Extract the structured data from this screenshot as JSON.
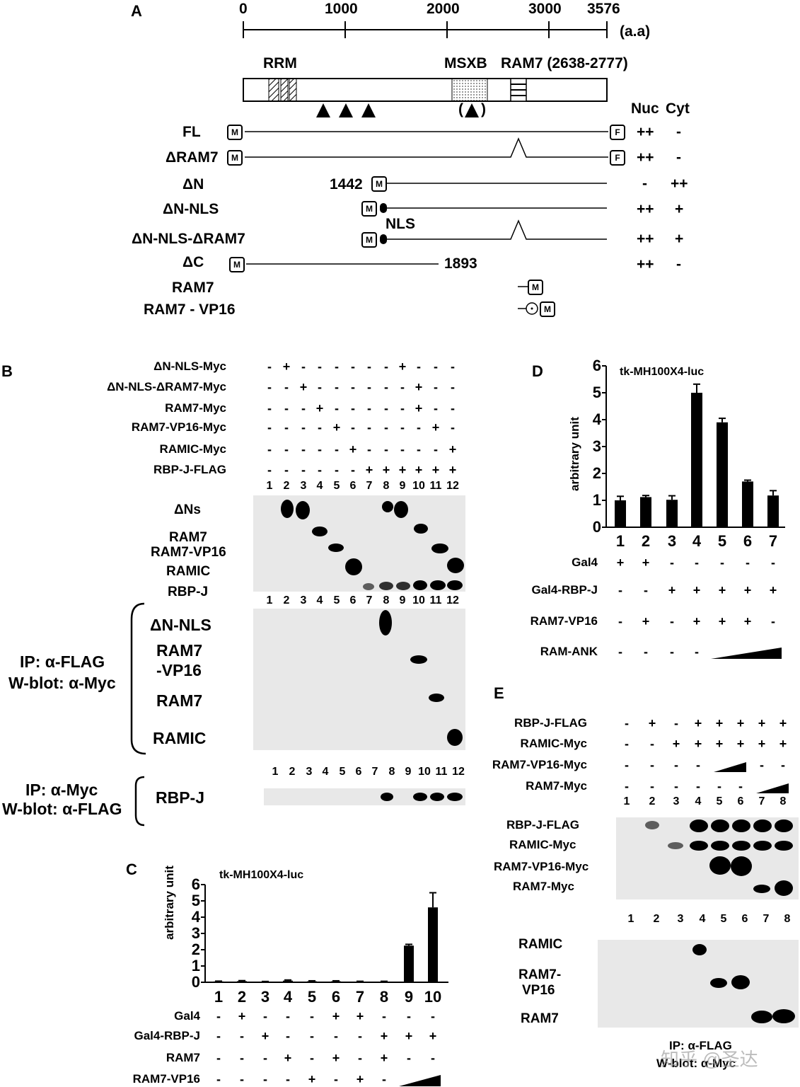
{
  "panelA": {
    "letter": "A",
    "scale_ticks": [
      "0",
      "1000",
      "2000",
      "3000",
      "3576"
    ],
    "scale_unit": "(a.a)",
    "domain_labels": {
      "rrm": "RRM",
      "msxb": "MSXB",
      "ram7": "RAM7 (2638-2777)"
    },
    "arrow_paren": "(",
    "arrow_paren_close": ")",
    "column_headers": {
      "nuc": "Nuc",
      "cyt": "Cyt"
    },
    "myc_tag": "M",
    "flag_tag": "F",
    "nls_label": "NLS",
    "dn_start": "1442",
    "dc_end": "1893",
    "constructs": [
      {
        "name": "FL",
        "nuc": "++",
        "cyt": "-"
      },
      {
        "name": "ΔRAM7",
        "nuc": "++",
        "cyt": "-"
      },
      {
        "name": "ΔN",
        "nuc": "-",
        "cyt": "++"
      },
      {
        "name": "ΔN-NLS",
        "nuc": "++",
        "cyt": "+"
      },
      {
        "name": "ΔN-NLS-ΔRAM7",
        "nuc": "++",
        "cyt": "+"
      },
      {
        "name": "ΔC",
        "nuc": "++",
        "cyt": "-"
      },
      {
        "name": "RAM7",
        "nuc": "",
        "cyt": ""
      },
      {
        "name": "RAM7 - VP16",
        "nuc": "",
        "cyt": ""
      }
    ]
  },
  "panelB": {
    "letter": "B",
    "rows": [
      {
        "label": "ΔN-NLS-Myc",
        "signs": "-+------+---"
      },
      {
        "label": "ΔN-NLS-ΔRAM7-Myc",
        "signs": "--+------+--"
      },
      {
        "label": "RAM7-Myc",
        "signs": "---+-----+--"
      },
      {
        "label": "RAM7-VP16-Myc",
        "signs": "----+-----+-"
      },
      {
        "label": "RAMIC-Myc",
        "signs": "-----+-----+"
      },
      {
        "label": "RBP-J-FLAG",
        "signs": "------++++++"
      }
    ],
    "lanes": [
      "1",
      "2",
      "3",
      "4",
      "5",
      "6",
      "7",
      "8",
      "9",
      "10",
      "11",
      "12"
    ],
    "blot1_labels": [
      "ΔNs",
      "RAM7",
      "RAM7-VP16",
      "RAMIC",
      "RBP-J"
    ],
    "blot2_labels": [
      "ΔN-NLS",
      "RAM7",
      "-VP16",
      "RAM7",
      "RAMIC"
    ],
    "blot2_ip": [
      "IP: α-FLAG",
      "W-blot: α-Myc"
    ],
    "blot3_label": "RBP-J",
    "blot3_ip": [
      "IP: α-Myc",
      "W-blot: α-FLAG"
    ]
  },
  "chart_data": [
    {
      "panel": "C",
      "type": "bar",
      "title": "tk-MH100X4-luc",
      "ylabel": "arbitrary unit",
      "ylim": [
        0,
        6
      ],
      "yticks": [
        "0",
        "1",
        "2",
        "3",
        "4",
        "5",
        "6"
      ],
      "categories": [
        "1",
        "2",
        "3",
        "4",
        "5",
        "6",
        "7",
        "8",
        "9",
        "10"
      ],
      "values": [
        0.05,
        0.07,
        0.03,
        0.1,
        0.06,
        0.06,
        0.04,
        0.04,
        2.25,
        4.6
      ],
      "errors": [
        0.02,
        0.03,
        0.02,
        0.04,
        0.03,
        0.03,
        0.02,
        0.02,
        0.08,
        0.9
      ],
      "conditions": [
        {
          "label": "Gal4",
          "signs": [
            "-",
            "+",
            "-",
            "-",
            "-",
            "+",
            "+",
            "-",
            "-",
            "-"
          ]
        },
        {
          "label": "Gal4-RBP-J",
          "signs": [
            "-",
            "-",
            "+",
            "-",
            "-",
            "-",
            "-",
            "+",
            "+",
            "+"
          ]
        },
        {
          "label": "RAM7",
          "signs": [
            "-",
            "-",
            "-",
            "+",
            "-",
            "+",
            "-",
            "+",
            "-",
            "-"
          ]
        },
        {
          "label": "RAM7-VP16",
          "signs": [
            "-",
            "-",
            "-",
            "-",
            "+",
            "-",
            "+",
            "-",
            "ramp",
            "ramp"
          ]
        }
      ]
    },
    {
      "panel": "D",
      "type": "bar",
      "title": "tk-MH100X4-luc",
      "ylabel": "arbitrary unit",
      "ylim": [
        0,
        6
      ],
      "yticks": [
        "0",
        "1",
        "2",
        "3",
        "4",
        "5",
        "6"
      ],
      "categories": [
        "1",
        "2",
        "3",
        "4",
        "5",
        "6",
        "7"
      ],
      "values": [
        1.0,
        1.12,
        1.02,
        5.0,
        3.9,
        1.7,
        1.18
      ],
      "errors": [
        0.15,
        0.06,
        0.15,
        0.32,
        0.15,
        0.05,
        0.18
      ],
      "conditions": [
        {
          "label": "Gal4",
          "signs": [
            "+",
            "+",
            "-",
            "-",
            "-",
            "-",
            "-"
          ]
        },
        {
          "label": "Gal4-RBP-J",
          "signs": [
            "-",
            "-",
            "+",
            "+",
            "+",
            "+",
            "+"
          ]
        },
        {
          "label": "RAM7-VP16",
          "signs": [
            "-",
            "+",
            "-",
            "+",
            "+",
            "+",
            "-"
          ]
        },
        {
          "label": "RAM-ANK",
          "signs": [
            "-",
            "-",
            "-",
            "-",
            "ramp",
            "ramp",
            "ramp"
          ]
        }
      ]
    }
  ],
  "panelE": {
    "letter": "E",
    "rows": [
      {
        "label": "RBP-J-FLAG",
        "signs": "-+-+++++"
      },
      {
        "label": "RAMIC-Myc",
        "signs": "--++++++"
      },
      {
        "label": "RAM7-VP16-Myc",
        "signs": "----//--"
      },
      {
        "label": "RAM7-Myc",
        "signs": "------//"
      }
    ],
    "lanes": [
      "1",
      "2",
      "3",
      "4",
      "5",
      "6",
      "7",
      "8"
    ],
    "blot1_labels": [
      "RBP-J-FLAG",
      "RAMIC-Myc",
      "RAM7-VP16-Myc",
      "RAM7-Myc"
    ],
    "blot2_labels": [
      "RAMIC",
      "RAM7-",
      "VP16",
      "RAM7"
    ],
    "ip": [
      "IP: α-FLAG",
      "W-blot: α-Myc"
    ]
  },
  "watermark": "知乎 @圣达"
}
